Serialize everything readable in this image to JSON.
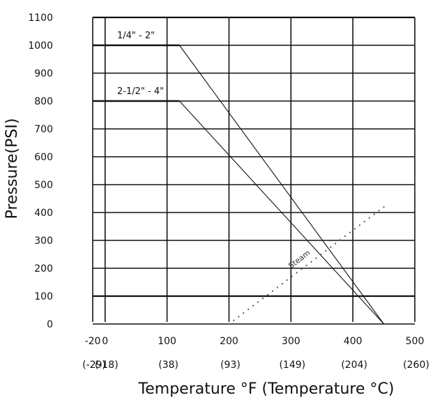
{
  "chart_data": {
    "type": "line",
    "xlabel": "Temperature °F (Temperature °C)",
    "ylabel": "Pressure(PSI)",
    "xlim": [
      -20,
      500
    ],
    "ylim": [
      0,
      1100
    ],
    "grid": true,
    "x_ticks": [
      -20,
      0,
      100,
      200,
      300,
      400,
      500
    ],
    "x_tick_labels": [
      "-20",
      "0",
      "100",
      "200",
      "300",
      "400",
      "500"
    ],
    "x_celsius_labels": [
      "(-29)",
      "(-18)",
      "(38)",
      "(93)",
      "(149)",
      "(204)",
      "(260)"
    ],
    "y_ticks": [
      0,
      100,
      200,
      300,
      400,
      500,
      600,
      700,
      800,
      900,
      1000,
      1100
    ],
    "y_tick_labels": [
      "0",
      "100",
      "200",
      "300",
      "400",
      "500",
      "600",
      "700",
      "800",
      "900",
      "1000",
      "1100"
    ],
    "series": [
      {
        "name": "1/4\" - 2\"",
        "x": [
          -20,
          120,
          450
        ],
        "y": [
          1000,
          1000,
          0
        ],
        "style": "solid"
      },
      {
        "name": "2-1/2\" - 4\"",
        "x": [
          -20,
          120,
          450
        ],
        "y": [
          800,
          800,
          0
        ],
        "style": "solid"
      },
      {
        "name": "Steam",
        "x": [
          200,
          450
        ],
        "y": [
          0,
          420
        ],
        "style": "dotted"
      }
    ],
    "colors": {
      "line": "#111111",
      "grid": "#111111",
      "steam": "#555555"
    }
  }
}
